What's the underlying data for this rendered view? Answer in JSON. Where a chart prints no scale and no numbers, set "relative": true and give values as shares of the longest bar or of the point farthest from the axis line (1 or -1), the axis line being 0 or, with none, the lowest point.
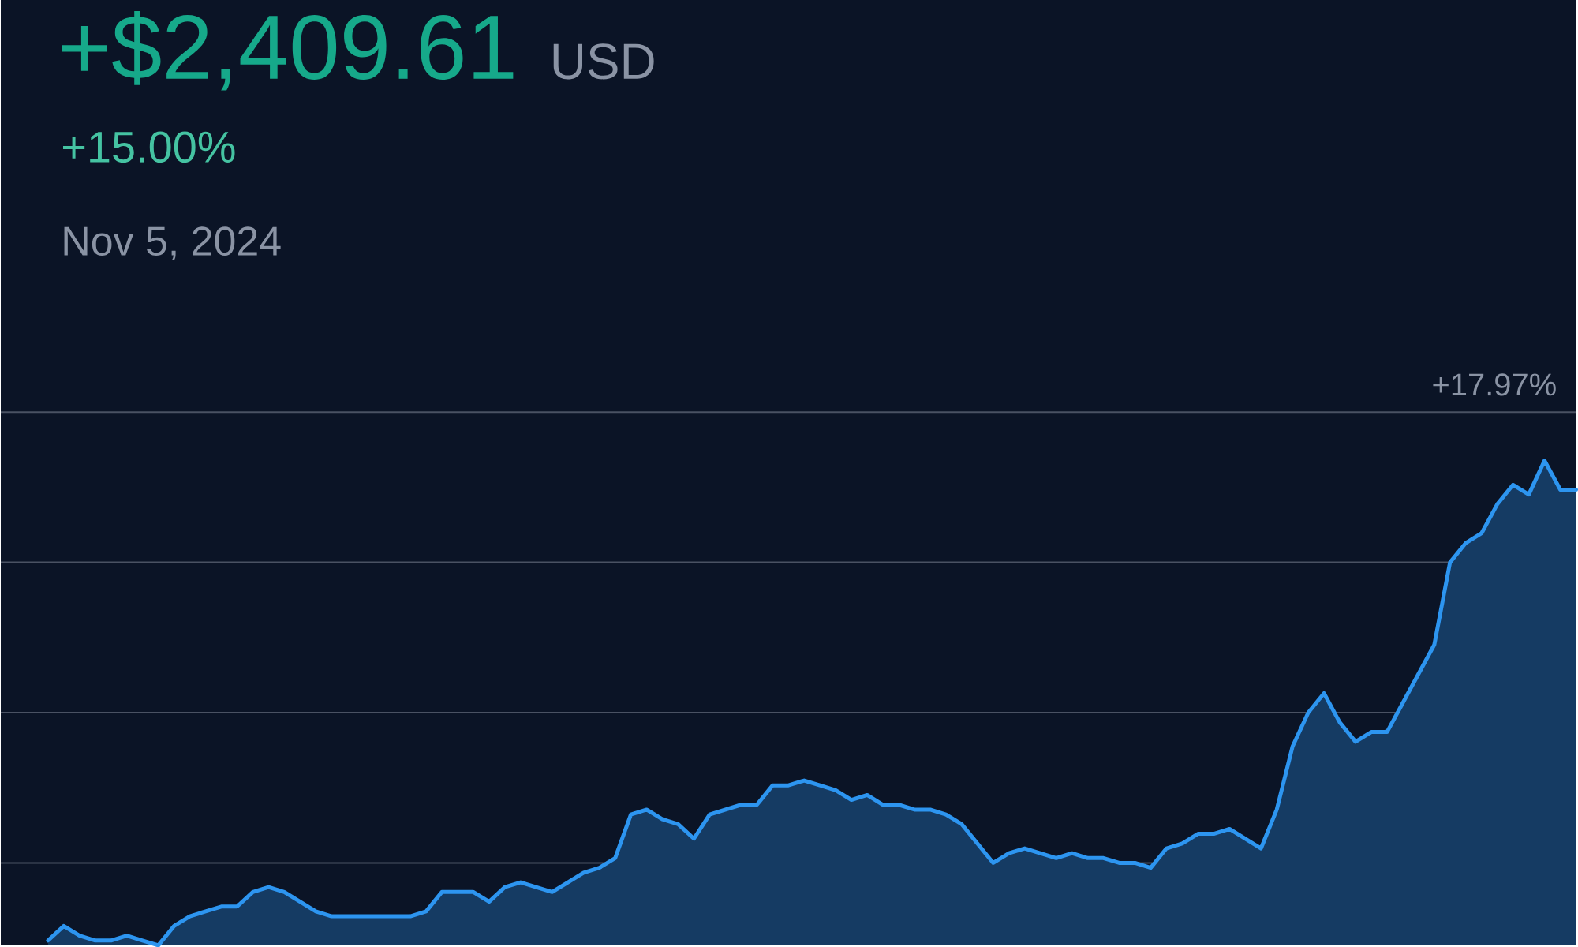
{
  "chart_data": {
    "type": "area",
    "title": "+$2,409.61",
    "subtitle": "+15.00%",
    "annotations": [
      "USD",
      "Nov 5, 2024",
      "+17.97%"
    ],
    "relative": true,
    "color": "#2d95f0",
    "categories": [
      null,
      null,
      null,
      null,
      null,
      null,
      null,
      null,
      null,
      null,
      null,
      null,
      null,
      null,
      null,
      null,
      null,
      null,
      null,
      null,
      null,
      null,
      null,
      null,
      null,
      null,
      null,
      null,
      null,
      null,
      null,
      null,
      null,
      null,
      null,
      null,
      null,
      null,
      null,
      null,
      null,
      null,
      null,
      null,
      null,
      null,
      null,
      null,
      null,
      null,
      null,
      null,
      null,
      null,
      null,
      null,
      null,
      null,
      null,
      null,
      null,
      null,
      null,
      null,
      null,
      null,
      null,
      null,
      null,
      null,
      null,
      null,
      null,
      null,
      null,
      null,
      null,
      null,
      null,
      null,
      null,
      null,
      null,
      null,
      null,
      null,
      null,
      null,
      null,
      null,
      null,
      null,
      null,
      null,
      null,
      null,
      null,
      null
    ],
    "values": [
      0.01,
      0.04,
      0.02,
      0.01,
      0.01,
      0.02,
      0.01,
      0,
      0.04,
      0.06,
      0.07,
      0.08,
      0.08,
      0.11,
      0.12,
      0.11,
      0.09,
      0.07,
      0.06,
      0.06,
      0.06,
      0.06,
      0.06,
      0.06,
      0.07,
      0.11,
      0.11,
      0.11,
      0.09,
      0.12,
      0.13,
      0.12,
      0.11,
      0.13,
      0.15,
      0.16,
      0.18,
      0.27,
      0.28,
      0.26,
      0.25,
      0.22,
      0.27,
      0.28,
      0.29,
      0.29,
      0.33,
      0.33,
      0.34,
      0.33,
      0.32,
      0.3,
      0.31,
      0.29,
      0.29,
      0.28,
      0.28,
      0.27,
      0.25,
      0.21,
      0.17,
      0.19,
      0.2,
      0.19,
      0.18,
      0.19,
      0.18,
      0.18,
      0.17,
      0.17,
      0.16,
      0.2,
      0.21,
      0.23,
      0.23,
      0.24,
      0.22,
      0.2,
      0.28,
      0.41,
      0.48,
      0.52,
      0.46,
      0.42,
      0.44,
      0.44,
      0.5,
      0.56,
      0.62,
      0.79,
      0.83,
      0.85,
      0.91,
      0.95,
      0.93,
      1,
      0.94,
      0.94
    ],
    "ref_lines": [
      {
        "axis": "y",
        "value": 1.1,
        "color": "#4a5263"
      },
      {
        "axis": "y",
        "value": 0.79,
        "color": "#4a5263"
      },
      {
        "axis": "y",
        "value": 0.48,
        "color": "#4a5263"
      },
      {
        "axis": "y",
        "value": 0.17,
        "color": "#4a5263"
      }
    ]
  }
}
